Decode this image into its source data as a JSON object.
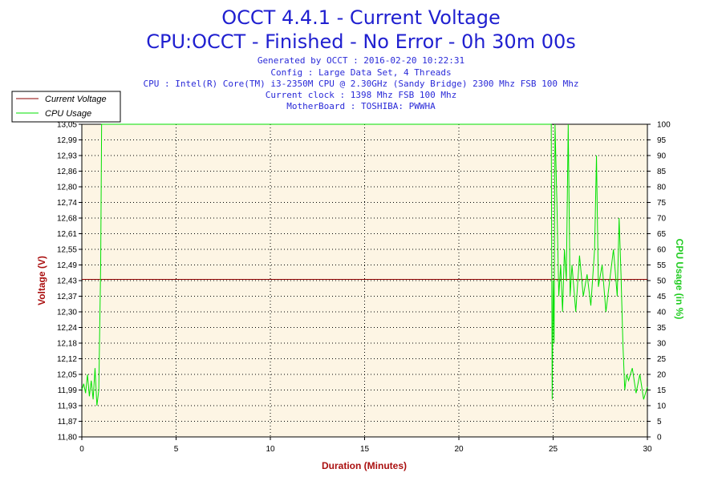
{
  "colors": {
    "title": "#2020d0",
    "subtitle": "#2a2ad8",
    "voltage_series": "#8b0000",
    "cpu_series": "#00e000",
    "plot_background": "#fdf5e4",
    "grid": "#000000",
    "xlabel": "#aa1010",
    "ylabel_left": "#aa1010",
    "ylabel_right": "#22cc22"
  },
  "chart_data": {
    "type": "line",
    "title": "OCCT 4.4.1 - Current Voltage",
    "subtitle": "CPU:OCCT - Finished - No Error - 0h 30m 00s",
    "info_lines": [
      "Generated by OCCT : 2016-02-20 10:22:31",
      "Config : Large Data Set, 4 Threads",
      "CPU : Intel(R) Core(TM) i3-2350M CPU @ 2.30GHz (Sandy Bridge) 2300 Mhz FSB 100 Mhz",
      "Current clock : 1398 Mhz FSB 100 Mhz",
      "MotherBoard : TOSHIBA: PWWHA"
    ],
    "xlabel": "Duration (Minutes)",
    "ylabel_left": "Voltage (V)",
    "ylabel_right": "CPU Usage (in %)",
    "xlim": [
      0,
      30
    ],
    "ylim_left": [
      11.8,
      13.05
    ],
    "ylim_right": [
      0,
      100
    ],
    "x_ticks": [
      "0",
      "5",
      "10",
      "15",
      "20",
      "25",
      "30"
    ],
    "y_ticks_left": [
      "11,80",
      "11,87",
      "11,93",
      "11,99",
      "12,05",
      "12,12",
      "12,18",
      "12,24",
      "12,30",
      "12,37",
      "12,43",
      "12,49",
      "12,55",
      "12,61",
      "12,68",
      "12,74",
      "12,80",
      "12,86",
      "12,93",
      "12,99",
      "13,05"
    ],
    "y_ticks_right": [
      "0",
      "5",
      "10",
      "15",
      "20",
      "25",
      "30",
      "35",
      "40",
      "45",
      "50",
      "55",
      "60",
      "65",
      "70",
      "75",
      "80",
      "85",
      "90",
      "95",
      "100"
    ],
    "grid": true,
    "legend_position": "top-left",
    "series": [
      {
        "name": "Current Voltage",
        "axis": "left",
        "x": [
          0,
          30
        ],
        "y": [
          12.43,
          12.43
        ]
      },
      {
        "name": "CPU Usage",
        "axis": "right",
        "x": [
          0,
          0.1,
          0.2,
          0.3,
          0.4,
          0.5,
          0.6,
          0.7,
          0.8,
          0.9,
          0.95,
          1.0,
          1.05,
          1.1,
          24.9,
          24.95,
          25.0,
          25.05,
          25.1,
          25.2,
          25.3,
          25.4,
          25.5,
          25.6,
          25.7,
          25.8,
          25.9,
          26.0,
          26.2,
          26.4,
          26.6,
          26.8,
          27.0,
          27.2,
          27.3,
          27.4,
          27.6,
          27.8,
          28.0,
          28.2,
          28.4,
          28.5,
          28.6,
          28.7,
          28.8,
          28.9,
          29.0,
          29.2,
          29.4,
          29.6,
          29.8,
          30.0
        ],
        "y": [
          15,
          17,
          14,
          20,
          13,
          18,
          12,
          22,
          10,
          15,
          35,
          55,
          100,
          100,
          100,
          12,
          50,
          30,
          100,
          75,
          45,
          55,
          40,
          60,
          50,
          100,
          45,
          55,
          40,
          58,
          45,
          52,
          42,
          60,
          90,
          48,
          55,
          40,
          50,
          60,
          45,
          70,
          52,
          30,
          15,
          20,
          18,
          22,
          14,
          20,
          12,
          16
        ]
      }
    ]
  }
}
